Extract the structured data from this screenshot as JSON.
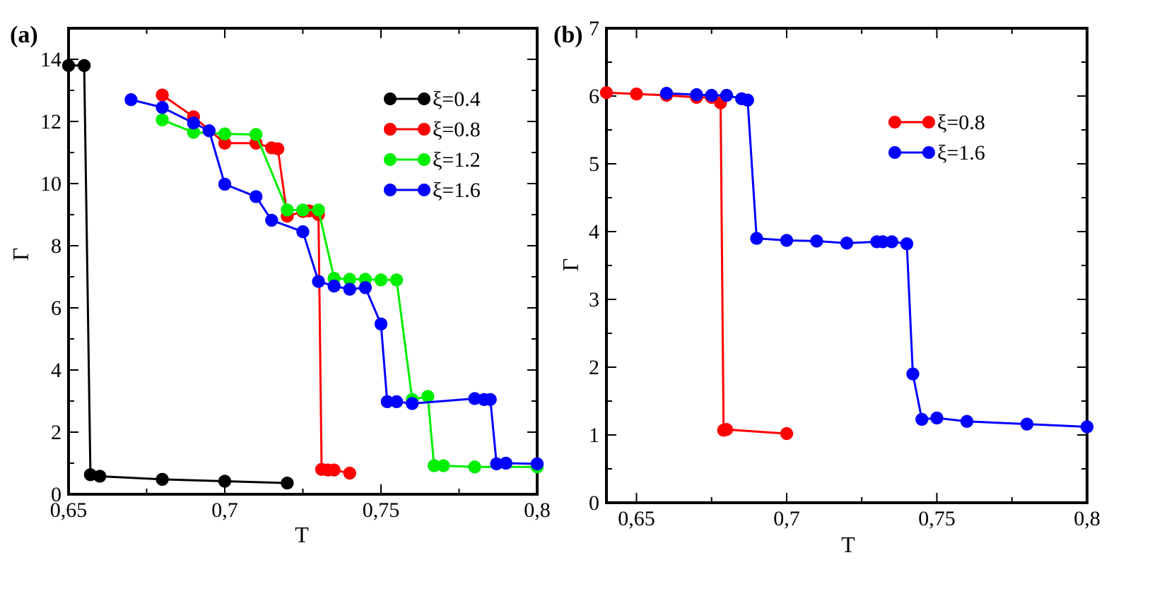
{
  "chart_data": [
    {
      "type": "line",
      "panel_label": "(a)",
      "xlabel": "T",
      "ylabel": "Γ",
      "xlim": [
        0.65,
        0.8
      ],
      "ylim": [
        0,
        15
      ],
      "xticks": [
        0.65,
        0.7,
        0.75,
        0.8
      ],
      "xtick_labels": [
        "0,65",
        "0,7",
        "0,75",
        "0,8"
      ],
      "yticks": [
        0,
        2,
        4,
        6,
        8,
        10,
        12,
        14
      ],
      "ytick_labels": [
        "0",
        "2",
        "4",
        "6",
        "8",
        "10",
        "12",
        "14"
      ],
      "legend_position": "top-right",
      "series": [
        {
          "name": "ξ=0.4",
          "color": "#000000",
          "x": [
            0.65,
            0.655,
            0.657,
            0.66,
            0.68,
            0.7,
            0.72
          ],
          "y": [
            13.8,
            13.8,
            0.63,
            0.58,
            0.48,
            0.42,
            0.36
          ]
        },
        {
          "name": "ξ=0.8",
          "color": "#ff0000",
          "x": [
            0.68,
            0.69,
            0.7,
            0.71,
            0.715,
            0.717,
            0.72,
            0.725,
            0.727,
            0.73,
            0.731,
            0.733,
            0.735,
            0.74
          ],
          "y": [
            12.85,
            12.15,
            11.3,
            11.3,
            11.15,
            11.12,
            8.95,
            9.1,
            9.12,
            9.0,
            0.8,
            0.78,
            0.78,
            0.68
          ]
        },
        {
          "name": "ξ=1.2",
          "color": "#00ee00",
          "x": [
            0.68,
            0.69,
            0.7,
            0.71,
            0.72,
            0.725,
            0.73,
            0.735,
            0.74,
            0.745,
            0.75,
            0.755,
            0.76,
            0.765,
            0.767,
            0.77,
            0.78,
            0.8
          ],
          "y": [
            12.05,
            11.65,
            11.6,
            11.58,
            9.15,
            9.15,
            9.15,
            6.95,
            6.92,
            6.92,
            6.9,
            6.9,
            3.05,
            3.15,
            0.92,
            0.92,
            0.88,
            0.88
          ]
        },
        {
          "name": "ξ=1.6",
          "color": "#0000ff",
          "x": [
            0.67,
            0.68,
            0.69,
            0.695,
            0.7,
            0.71,
            0.715,
            0.725,
            0.73,
            0.735,
            0.74,
            0.745,
            0.75,
            0.752,
            0.755,
            0.76,
            0.78,
            0.783,
            0.785,
            0.787,
            0.79,
            0.8
          ],
          "y": [
            12.7,
            12.45,
            11.95,
            11.7,
            9.98,
            9.58,
            8.82,
            8.45,
            6.85,
            6.7,
            6.6,
            6.65,
            5.48,
            2.98,
            2.98,
            2.92,
            3.08,
            3.05,
            3.05,
            0.98,
            1.0,
            0.98
          ]
        }
      ]
    },
    {
      "type": "line",
      "panel_label": "(b)",
      "xlabel": "T",
      "ylabel": "Γ",
      "xlim": [
        0.64,
        0.8
      ],
      "ylim": [
        0,
        7
      ],
      "xticks": [
        0.65,
        0.7,
        0.75,
        0.8
      ],
      "xtick_labels": [
        "0,65",
        "0,7",
        "0,75",
        "0,8"
      ],
      "yticks": [
        0,
        1,
        2,
        3,
        4,
        5,
        6,
        7
      ],
      "ytick_labels": [
        "0",
        "1",
        "2",
        "3",
        "4",
        "5",
        "6",
        "7"
      ],
      "legend_position": "top-right",
      "series": [
        {
          "name": "ξ=0.8",
          "color": "#ff0000",
          "x": [
            0.64,
            0.65,
            0.66,
            0.67,
            0.675,
            0.678,
            0.679,
            0.68,
            0.7
          ],
          "y": [
            6.05,
            6.03,
            6.01,
            5.98,
            5.98,
            5.9,
            1.07,
            1.08,
            1.02
          ]
        },
        {
          "name": "ξ=1.6",
          "color": "#0000ff",
          "x": [
            0.66,
            0.67,
            0.675,
            0.68,
            0.685,
            0.687,
            0.69,
            0.7,
            0.71,
            0.72,
            0.73,
            0.732,
            0.735,
            0.74,
            0.742,
            0.745,
            0.75,
            0.76,
            0.78,
            0.8
          ],
          "y": [
            6.04,
            6.02,
            6.01,
            6.01,
            5.96,
            5.94,
            3.9,
            3.87,
            3.86,
            3.83,
            3.85,
            3.85,
            3.85,
            3.82,
            1.9,
            1.23,
            1.25,
            1.2,
            1.16,
            1.12
          ]
        }
      ]
    }
  ]
}
